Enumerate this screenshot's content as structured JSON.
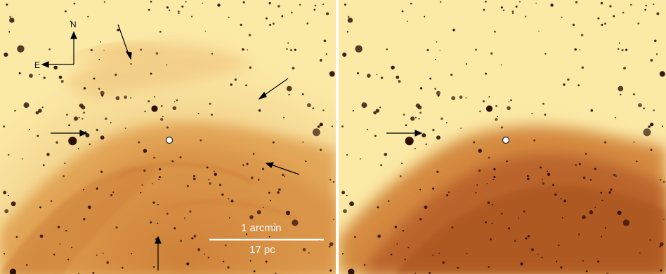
{
  "figure": {
    "compass": {
      "north_label": "N",
      "east_label": "E"
    },
    "scale_bar": {
      "angular_label": "1 arcmin",
      "physical_label": "17 pc"
    }
  },
  "panels": [
    {
      "id": "left",
      "arrows": 6,
      "marker": "white-circle"
    },
    {
      "id": "right",
      "arrows": 1,
      "marker": "white-circle"
    }
  ],
  "colors": {
    "background": "#fbe9a6",
    "nebula_light": "#e9b15e",
    "nebula_dark": "#b9622a",
    "stars": "#2a0d05"
  }
}
